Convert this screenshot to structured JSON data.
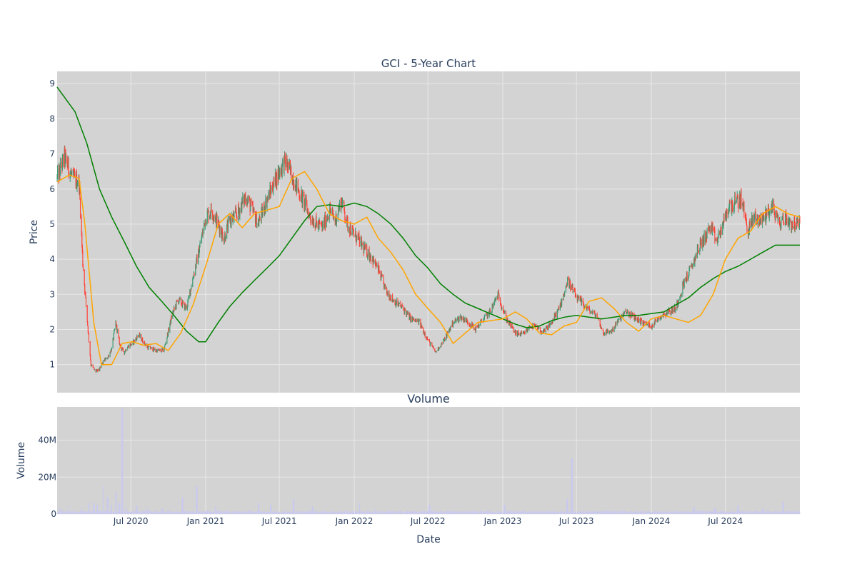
{
  "chart_data": [
    {
      "type": "line",
      "title": "GCI - 5-Year Chart",
      "xlabel": "",
      "ylabel": "Price",
      "xlim": [
        "2020-01-02",
        "2024-12-31"
      ],
      "ylim": [
        0.2,
        9.35
      ],
      "yticks": [
        1,
        2,
        3,
        4,
        5,
        6,
        7,
        8,
        9
      ],
      "grid": true,
      "legend": "none",
      "colors": {
        "background": "#d3d3d3",
        "grid": "#e8e8e8",
        "up": "#3d9970",
        "down": "#ff4136",
        "ma_short": "#ffa500",
        "ma_long": "#008000"
      },
      "price_series": {
        "dates": [
          "2020-01-02",
          "2020-01-20",
          "2020-02-10",
          "2020-02-25",
          "2020-03-05",
          "2020-03-15",
          "2020-03-25",
          "2020-04-05",
          "2020-04-15",
          "2020-04-25",
          "2020-05-05",
          "2020-05-15",
          "2020-05-25",
          "2020-06-05",
          "2020-06-15",
          "2020-06-22",
          "2020-07-05",
          "2020-07-20",
          "2020-08-10",
          "2020-09-01",
          "2020-09-20",
          "2020-10-10",
          "2020-10-25",
          "2020-11-15",
          "2020-12-01",
          "2020-12-15",
          "2021-01-01",
          "2021-01-15",
          "2021-02-01",
          "2021-02-15",
          "2021-03-01",
          "2021-03-20",
          "2021-04-10",
          "2021-04-25",
          "2021-05-10",
          "2021-05-25",
          "2021-06-15",
          "2021-07-01",
          "2021-07-15",
          "2021-08-01",
          "2021-08-15",
          "2021-09-01",
          "2021-09-15",
          "2021-10-01",
          "2021-10-15",
          "2021-11-01",
          "2021-11-15",
          "2021-12-01",
          "2021-12-15",
          "2022-01-01",
          "2022-01-15",
          "2022-01-25",
          "2022-02-10",
          "2022-03-01",
          "2022-03-20",
          "2022-04-10",
          "2022-05-01",
          "2022-05-20",
          "2022-06-10",
          "2022-07-01",
          "2022-07-20",
          "2022-08-10",
          "2022-09-01",
          "2022-09-20",
          "2022-10-10",
          "2022-10-25",
          "2022-11-15",
          "2022-12-01",
          "2022-12-20",
          "2023-01-10",
          "2023-02-01",
          "2023-02-20",
          "2023-03-10",
          "2023-03-25",
          "2023-04-10",
          "2023-05-01",
          "2023-05-20",
          "2023-06-10",
          "2023-07-01",
          "2023-07-20",
          "2023-08-05",
          "2023-08-20",
          "2023-09-05",
          "2023-09-25",
          "2023-10-15",
          "2023-11-01",
          "2023-11-20",
          "2023-12-10",
          "2024-01-01",
          "2024-01-20",
          "2024-02-10",
          "2024-03-01",
          "2024-03-20",
          "2024-04-10",
          "2024-04-25",
          "2024-05-10",
          "2024-05-25",
          "2024-06-10",
          "2024-06-25",
          "2024-07-10",
          "2024-07-25",
          "2024-08-10",
          "2024-08-25",
          "2024-09-10",
          "2024-09-25",
          "2024-10-10",
          "2024-10-25",
          "2024-11-10",
          "2024-11-25",
          "2024-12-10",
          "2024-12-31"
        ],
        "close": [
          6.3,
          6.9,
          6.3,
          6.2,
          3.9,
          2.4,
          1.0,
          0.8,
          0.85,
          1.1,
          1.2,
          1.45,
          2.2,
          1.5,
          1.35,
          1.5,
          1.6,
          1.85,
          1.5,
          1.4,
          1.4,
          2.4,
          2.85,
          2.6,
          3.5,
          4.2,
          5.2,
          5.4,
          5.0,
          4.6,
          5.1,
          5.3,
          5.8,
          5.4,
          5.0,
          5.5,
          6.1,
          6.5,
          6.8,
          6.4,
          6.0,
          5.6,
          5.2,
          5.0,
          4.9,
          5.4,
          5.1,
          5.7,
          5.0,
          4.7,
          4.5,
          4.3,
          4.1,
          3.7,
          3.1,
          2.8,
          2.6,
          2.3,
          2.2,
          1.7,
          1.35,
          1.7,
          2.2,
          2.35,
          2.2,
          2.0,
          2.3,
          2.5,
          3.0,
          2.3,
          1.9,
          1.85,
          2.1,
          2.05,
          1.9,
          2.2,
          2.6,
          3.4,
          2.9,
          2.7,
          2.5,
          2.4,
          1.9,
          1.95,
          2.3,
          2.5,
          2.35,
          2.2,
          2.1,
          2.35,
          2.5,
          2.6,
          3.3,
          3.8,
          4.3,
          4.6,
          4.9,
          4.5,
          5.0,
          5.5,
          5.6,
          5.7,
          4.8,
          5.2,
          5.1,
          5.3,
          5.5,
          5.0,
          5.2,
          5.0,
          5.0
        ]
      },
      "ma_short": {
        "name": "",
        "dates": [
          "2020-01-02",
          "2020-02-01",
          "2020-02-25",
          "2020-03-10",
          "2020-04-01",
          "2020-04-20",
          "2020-05-15",
          "2020-06-10",
          "2020-07-05",
          "2020-08-01",
          "2020-09-01",
          "2020-10-01",
          "2020-11-01",
          "2020-12-01",
          "2021-01-01",
          "2021-02-01",
          "2021-03-01",
          "2021-04-01",
          "2021-05-01",
          "2021-06-01",
          "2021-07-01",
          "2021-08-01",
          "2021-09-01",
          "2021-10-01",
          "2021-11-01",
          "2021-12-01",
          "2022-01-01",
          "2022-02-01",
          "2022-03-01",
          "2022-04-01",
          "2022-05-01",
          "2022-06-01",
          "2022-07-01",
          "2022-08-01",
          "2022-09-01",
          "2022-10-01",
          "2022-11-01",
          "2022-12-01",
          "2023-01-01",
          "2023-02-01",
          "2023-03-01",
          "2023-04-01",
          "2023-05-01",
          "2023-06-01",
          "2023-07-01",
          "2023-08-01",
          "2023-09-01",
          "2023-10-01",
          "2023-11-01",
          "2023-12-01",
          "2024-01-01",
          "2024-02-01",
          "2024-03-01",
          "2024-04-01",
          "2024-05-01",
          "2024-06-01",
          "2024-07-01",
          "2024-08-01",
          "2024-09-01",
          "2024-10-01",
          "2024-11-01",
          "2024-12-01",
          "2024-12-31"
        ],
        "values": [
          6.2,
          6.4,
          6.3,
          5.0,
          2.2,
          1.0,
          1.0,
          1.6,
          1.65,
          1.55,
          1.6,
          1.4,
          1.9,
          2.7,
          3.8,
          5.0,
          5.3,
          4.9,
          5.3,
          5.4,
          5.5,
          6.3,
          6.5,
          6.0,
          5.3,
          5.1,
          5.0,
          5.2,
          4.6,
          4.2,
          3.7,
          3.0,
          2.6,
          2.2,
          1.6,
          1.9,
          2.2,
          2.25,
          2.3,
          2.5,
          2.3,
          1.9,
          1.85,
          2.1,
          2.2,
          2.8,
          2.9,
          2.6,
          2.2,
          1.95,
          2.3,
          2.4,
          2.3,
          2.2,
          2.4,
          3.0,
          4.0,
          4.6,
          4.8,
          5.3,
          5.5,
          5.3,
          5.2
        ]
      },
      "ma_long": {
        "name": "",
        "dates": [
          "2020-01-02",
          "2020-02-15",
          "2020-03-15",
          "2020-04-15",
          "2020-05-15",
          "2020-06-15",
          "2020-07-15",
          "2020-08-15",
          "2020-09-15",
          "2020-10-15",
          "2020-11-15",
          "2020-12-15",
          "2021-01-01",
          "2021-02-01",
          "2021-03-01",
          "2021-04-01",
          "2021-05-01",
          "2021-06-01",
          "2021-07-01",
          "2021-08-01",
          "2021-09-01",
          "2021-10-01",
          "2021-11-01",
          "2021-12-01",
          "2022-01-01",
          "2022-02-01",
          "2022-03-01",
          "2022-04-01",
          "2022-05-01",
          "2022-06-01",
          "2022-07-01",
          "2022-08-01",
          "2022-09-01",
          "2022-10-01",
          "2022-11-01",
          "2022-12-01",
          "2023-01-01",
          "2023-02-01",
          "2023-03-01",
          "2023-04-01",
          "2023-05-01",
          "2023-06-01",
          "2023-07-01",
          "2023-08-01",
          "2023-09-01",
          "2023-10-01",
          "2023-11-01",
          "2023-12-01",
          "2024-01-01",
          "2024-02-01",
          "2024-03-01",
          "2024-04-01",
          "2024-05-01",
          "2024-06-01",
          "2024-07-01",
          "2024-08-01",
          "2024-09-01",
          "2024-10-01",
          "2024-11-01",
          "2024-12-01",
          "2024-12-31"
        ],
        "values": [
          8.9,
          8.2,
          7.3,
          6.0,
          5.2,
          4.5,
          3.8,
          3.2,
          2.8,
          2.4,
          1.95,
          1.65,
          1.65,
          2.2,
          2.65,
          3.05,
          3.4,
          3.75,
          4.1,
          4.6,
          5.1,
          5.5,
          5.55,
          5.5,
          5.6,
          5.5,
          5.3,
          5.0,
          4.6,
          4.1,
          3.75,
          3.3,
          3.0,
          2.75,
          2.6,
          2.45,
          2.3,
          2.15,
          2.05,
          2.1,
          2.25,
          2.35,
          2.4,
          2.35,
          2.3,
          2.35,
          2.4,
          2.4,
          2.45,
          2.5,
          2.7,
          2.9,
          3.2,
          3.45,
          3.65,
          3.8,
          4.0,
          4.2,
          4.4,
          4.4,
          4.4
        ]
      }
    },
    {
      "type": "bar",
      "title": "Volume",
      "xlabel": "Date",
      "ylabel": "Volume",
      "ylim": [
        0,
        58000000
      ],
      "yticks": [
        0,
        20000000,
        40000000
      ],
      "ytick_labels": [
        "0",
        "20M",
        "40M"
      ],
      "xtick_dates": [
        "2020-07-01",
        "2021-01-01",
        "2021-07-01",
        "2022-01-01",
        "2022-07-01",
        "2023-01-01",
        "2023-07-01",
        "2024-01-01",
        "2024-07-01"
      ],
      "xtick_labels": [
        "Jul 2020",
        "Jan 2021",
        "Jul 2021",
        "Jan 2022",
        "Jul 2022",
        "Jan 2023",
        "Jul 2023",
        "Jan 2024",
        "Jul 2024"
      ],
      "grid": true,
      "colors": {
        "background": "#d3d3d3",
        "grid": "#e8e8e8",
        "bar": "#c9c9f0"
      },
      "baseline": 1200000,
      "spikes": {
        "dates": [
          "2020-01-10",
          "2020-02-01",
          "2020-03-01",
          "2020-03-20",
          "2020-04-01",
          "2020-04-10",
          "2020-04-25",
          "2020-05-05",
          "2020-05-15",
          "2020-05-25",
          "2020-06-03",
          "2020-06-10",
          "2020-06-20",
          "2020-07-15",
          "2020-08-10",
          "2020-09-15",
          "2020-11-05",
          "2020-12-10",
          "2021-01-25",
          "2021-05-10",
          "2021-06-10",
          "2021-08-05",
          "2021-09-20",
          "2022-01-15",
          "2022-02-20",
          "2022-07-05",
          "2023-01-05",
          "2023-06-08",
          "2023-06-20",
          "2024-04-15",
          "2024-06-05",
          "2024-08-01",
          "2024-10-01",
          "2024-11-20"
        ],
        "values": [
          3000000,
          4000000,
          3500000,
          6000000,
          6000000,
          5000000,
          15000000,
          9000000,
          5000000,
          12000000,
          6000000,
          57000000,
          4000000,
          4500000,
          3000000,
          3000000,
          9000000,
          15000000,
          4000000,
          6000000,
          5000000,
          8000000,
          4000000,
          6000000,
          3000000,
          5000000,
          5000000,
          8000000,
          30000000,
          4000000,
          3500000,
          4500000,
          3000000,
          6500000
        ]
      }
    }
  ]
}
